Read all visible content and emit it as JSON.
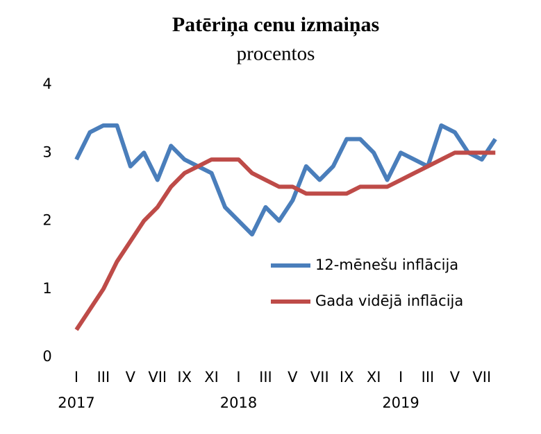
{
  "chart_data": {
    "type": "line",
    "title": "Patēriņa cenu izmaiņas",
    "subtitle": "procentos",
    "categories": [
      "I",
      null,
      "III",
      null,
      "V",
      null,
      "VII",
      null,
      "IX",
      null,
      "XI",
      null,
      "I",
      null,
      "III",
      null,
      "V",
      null,
      "VII",
      null,
      "IX",
      null,
      "XI",
      null,
      "I",
      null,
      "III",
      null,
      "V",
      null,
      "VII",
      null
    ],
    "years": [
      "2017",
      "2018",
      "2019"
    ],
    "series": [
      {
        "name": "12-mēnešu inflācija",
        "color": "#4a7ebb",
        "values": [
          2.9,
          3.3,
          3.4,
          3.4,
          2.8,
          3.0,
          2.6,
          3.1,
          2.9,
          2.8,
          2.7,
          2.2,
          2.0,
          1.8,
          2.2,
          2.0,
          2.3,
          2.8,
          2.6,
          2.8,
          3.2,
          3.2,
          3.0,
          2.6,
          3.0,
          2.9,
          2.8,
          3.4,
          3.3,
          3.0,
          2.9,
          3.2
        ]
      },
      {
        "name": "Gada vidējā inflācija",
        "color": "#be4b48",
        "values": [
          0.4,
          0.7,
          1.0,
          1.4,
          1.7,
          2.0,
          2.2,
          2.5,
          2.7,
          2.8,
          2.9,
          2.9,
          2.9,
          2.7,
          2.6,
          2.5,
          2.5,
          2.4,
          2.4,
          2.4,
          2.4,
          2.5,
          2.5,
          2.5,
          2.6,
          2.7,
          2.8,
          2.9,
          3.0,
          3.0,
          3.0,
          3.0
        ]
      }
    ],
    "ylim": [
      0,
      4
    ],
    "yticks": [
      0,
      1,
      2,
      3,
      4
    ],
    "grid": false,
    "legend": "right"
  }
}
